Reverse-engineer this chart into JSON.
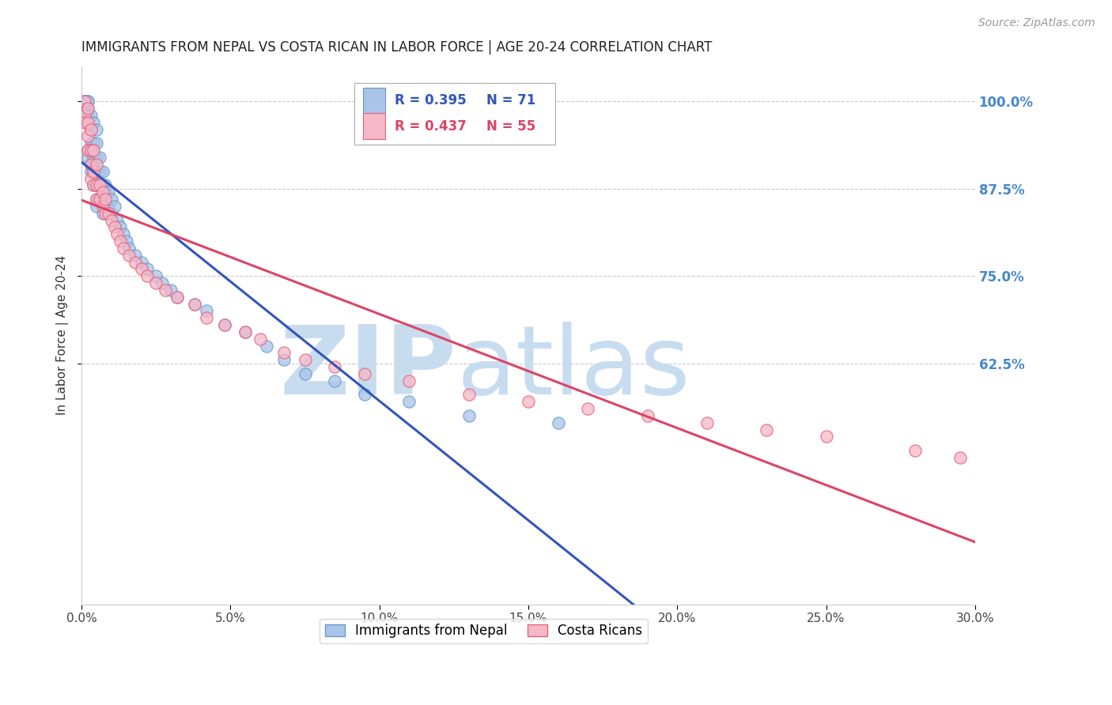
{
  "title": "IMMIGRANTS FROM NEPAL VS COSTA RICAN IN LABOR FORCE | AGE 20-24 CORRELATION CHART",
  "source": "Source: ZipAtlas.com",
  "ylabel_label": "In Labor Force | Age 20-24",
  "xlim": [
    0.0,
    0.3
  ],
  "ylim": [
    0.28,
    1.05
  ],
  "xticks": [
    0.0,
    0.05,
    0.1,
    0.15,
    0.2,
    0.25,
    0.3
  ],
  "xticklabels": [
    "0.0%",
    "5.0%",
    "10.0%",
    "15.0%",
    "20.0%",
    "25.0%",
    "30.0%"
  ],
  "yticks": [
    0.625,
    0.75,
    0.875,
    1.0
  ],
  "yticklabels": [
    "62.5%",
    "75.0%",
    "87.5%",
    "100.0%"
  ],
  "nepal_color": "#aac4e8",
  "nepal_edge_color": "#6699cc",
  "costa_color": "#f5b8c8",
  "costa_edge_color": "#e8607a",
  "regression_blue": "#3355bb",
  "regression_pink": "#dd4466",
  "legend_R_nepal": "R = 0.395",
  "legend_N_nepal": "N = 71",
  "legend_R_costa": "R = 0.437",
  "legend_N_costa": "N = 55",
  "nepal_x": [
    0.001,
    0.001,
    0.001,
    0.001,
    0.001,
    0.002,
    0.002,
    0.002,
    0.002,
    0.002,
    0.002,
    0.002,
    0.003,
    0.003,
    0.003,
    0.003,
    0.003,
    0.003,
    0.004,
    0.004,
    0.004,
    0.004,
    0.004,
    0.004,
    0.005,
    0.005,
    0.005,
    0.005,
    0.005,
    0.005,
    0.005,
    0.006,
    0.006,
    0.006,
    0.006,
    0.007,
    0.007,
    0.007,
    0.007,
    0.008,
    0.008,
    0.008,
    0.009,
    0.009,
    0.01,
    0.01,
    0.011,
    0.012,
    0.013,
    0.014,
    0.015,
    0.016,
    0.018,
    0.02,
    0.022,
    0.025,
    0.027,
    0.03,
    0.032,
    0.038,
    0.042,
    0.048,
    0.055,
    0.062,
    0.068,
    0.075,
    0.085,
    0.095,
    0.11,
    0.13,
    0.16
  ],
  "nepal_y": [
    1.0,
    1.0,
    1.0,
    0.99,
    0.99,
    1.0,
    1.0,
    0.99,
    0.98,
    0.97,
    0.93,
    0.92,
    0.98,
    0.96,
    0.94,
    0.93,
    0.91,
    0.9,
    0.97,
    0.94,
    0.92,
    0.91,
    0.9,
    0.88,
    0.96,
    0.94,
    0.92,
    0.9,
    0.88,
    0.86,
    0.85,
    0.92,
    0.9,
    0.88,
    0.86,
    0.9,
    0.88,
    0.86,
    0.84,
    0.88,
    0.87,
    0.85,
    0.87,
    0.85,
    0.86,
    0.84,
    0.85,
    0.83,
    0.82,
    0.81,
    0.8,
    0.79,
    0.78,
    0.77,
    0.76,
    0.75,
    0.74,
    0.73,
    0.72,
    0.71,
    0.7,
    0.68,
    0.67,
    0.65,
    0.63,
    0.61,
    0.6,
    0.58,
    0.57,
    0.55,
    0.54
  ],
  "costa_x": [
    0.001,
    0.001,
    0.001,
    0.002,
    0.002,
    0.002,
    0.002,
    0.003,
    0.003,
    0.003,
    0.003,
    0.004,
    0.004,
    0.004,
    0.005,
    0.005,
    0.005,
    0.006,
    0.006,
    0.007,
    0.007,
    0.008,
    0.008,
    0.009,
    0.01,
    0.011,
    0.012,
    0.013,
    0.014,
    0.016,
    0.018,
    0.02,
    0.022,
    0.025,
    0.028,
    0.032,
    0.038,
    0.042,
    0.048,
    0.055,
    0.06,
    0.068,
    0.075,
    0.085,
    0.095,
    0.11,
    0.13,
    0.15,
    0.17,
    0.19,
    0.21,
    0.23,
    0.25,
    0.28,
    0.295
  ],
  "costa_y": [
    1.0,
    0.98,
    0.97,
    0.99,
    0.97,
    0.95,
    0.93,
    0.96,
    0.93,
    0.91,
    0.89,
    0.93,
    0.9,
    0.88,
    0.91,
    0.88,
    0.86,
    0.88,
    0.86,
    0.87,
    0.85,
    0.86,
    0.84,
    0.84,
    0.83,
    0.82,
    0.81,
    0.8,
    0.79,
    0.78,
    0.77,
    0.76,
    0.75,
    0.74,
    0.73,
    0.72,
    0.71,
    0.69,
    0.68,
    0.67,
    0.66,
    0.64,
    0.63,
    0.62,
    0.61,
    0.6,
    0.58,
    0.57,
    0.56,
    0.55,
    0.54,
    0.53,
    0.52,
    0.5,
    0.49
  ],
  "watermark_zip": "ZIP",
  "watermark_atlas": "atlas",
  "watermark_color": "#c8dcf0",
  "background_color": "#ffffff",
  "grid_color": "#bbbbbb",
  "title_color": "#222222",
  "axis_label_color": "#333333",
  "right_ytick_color": "#4488cc",
  "figsize": [
    14.06,
    8.92
  ],
  "dpi": 100
}
